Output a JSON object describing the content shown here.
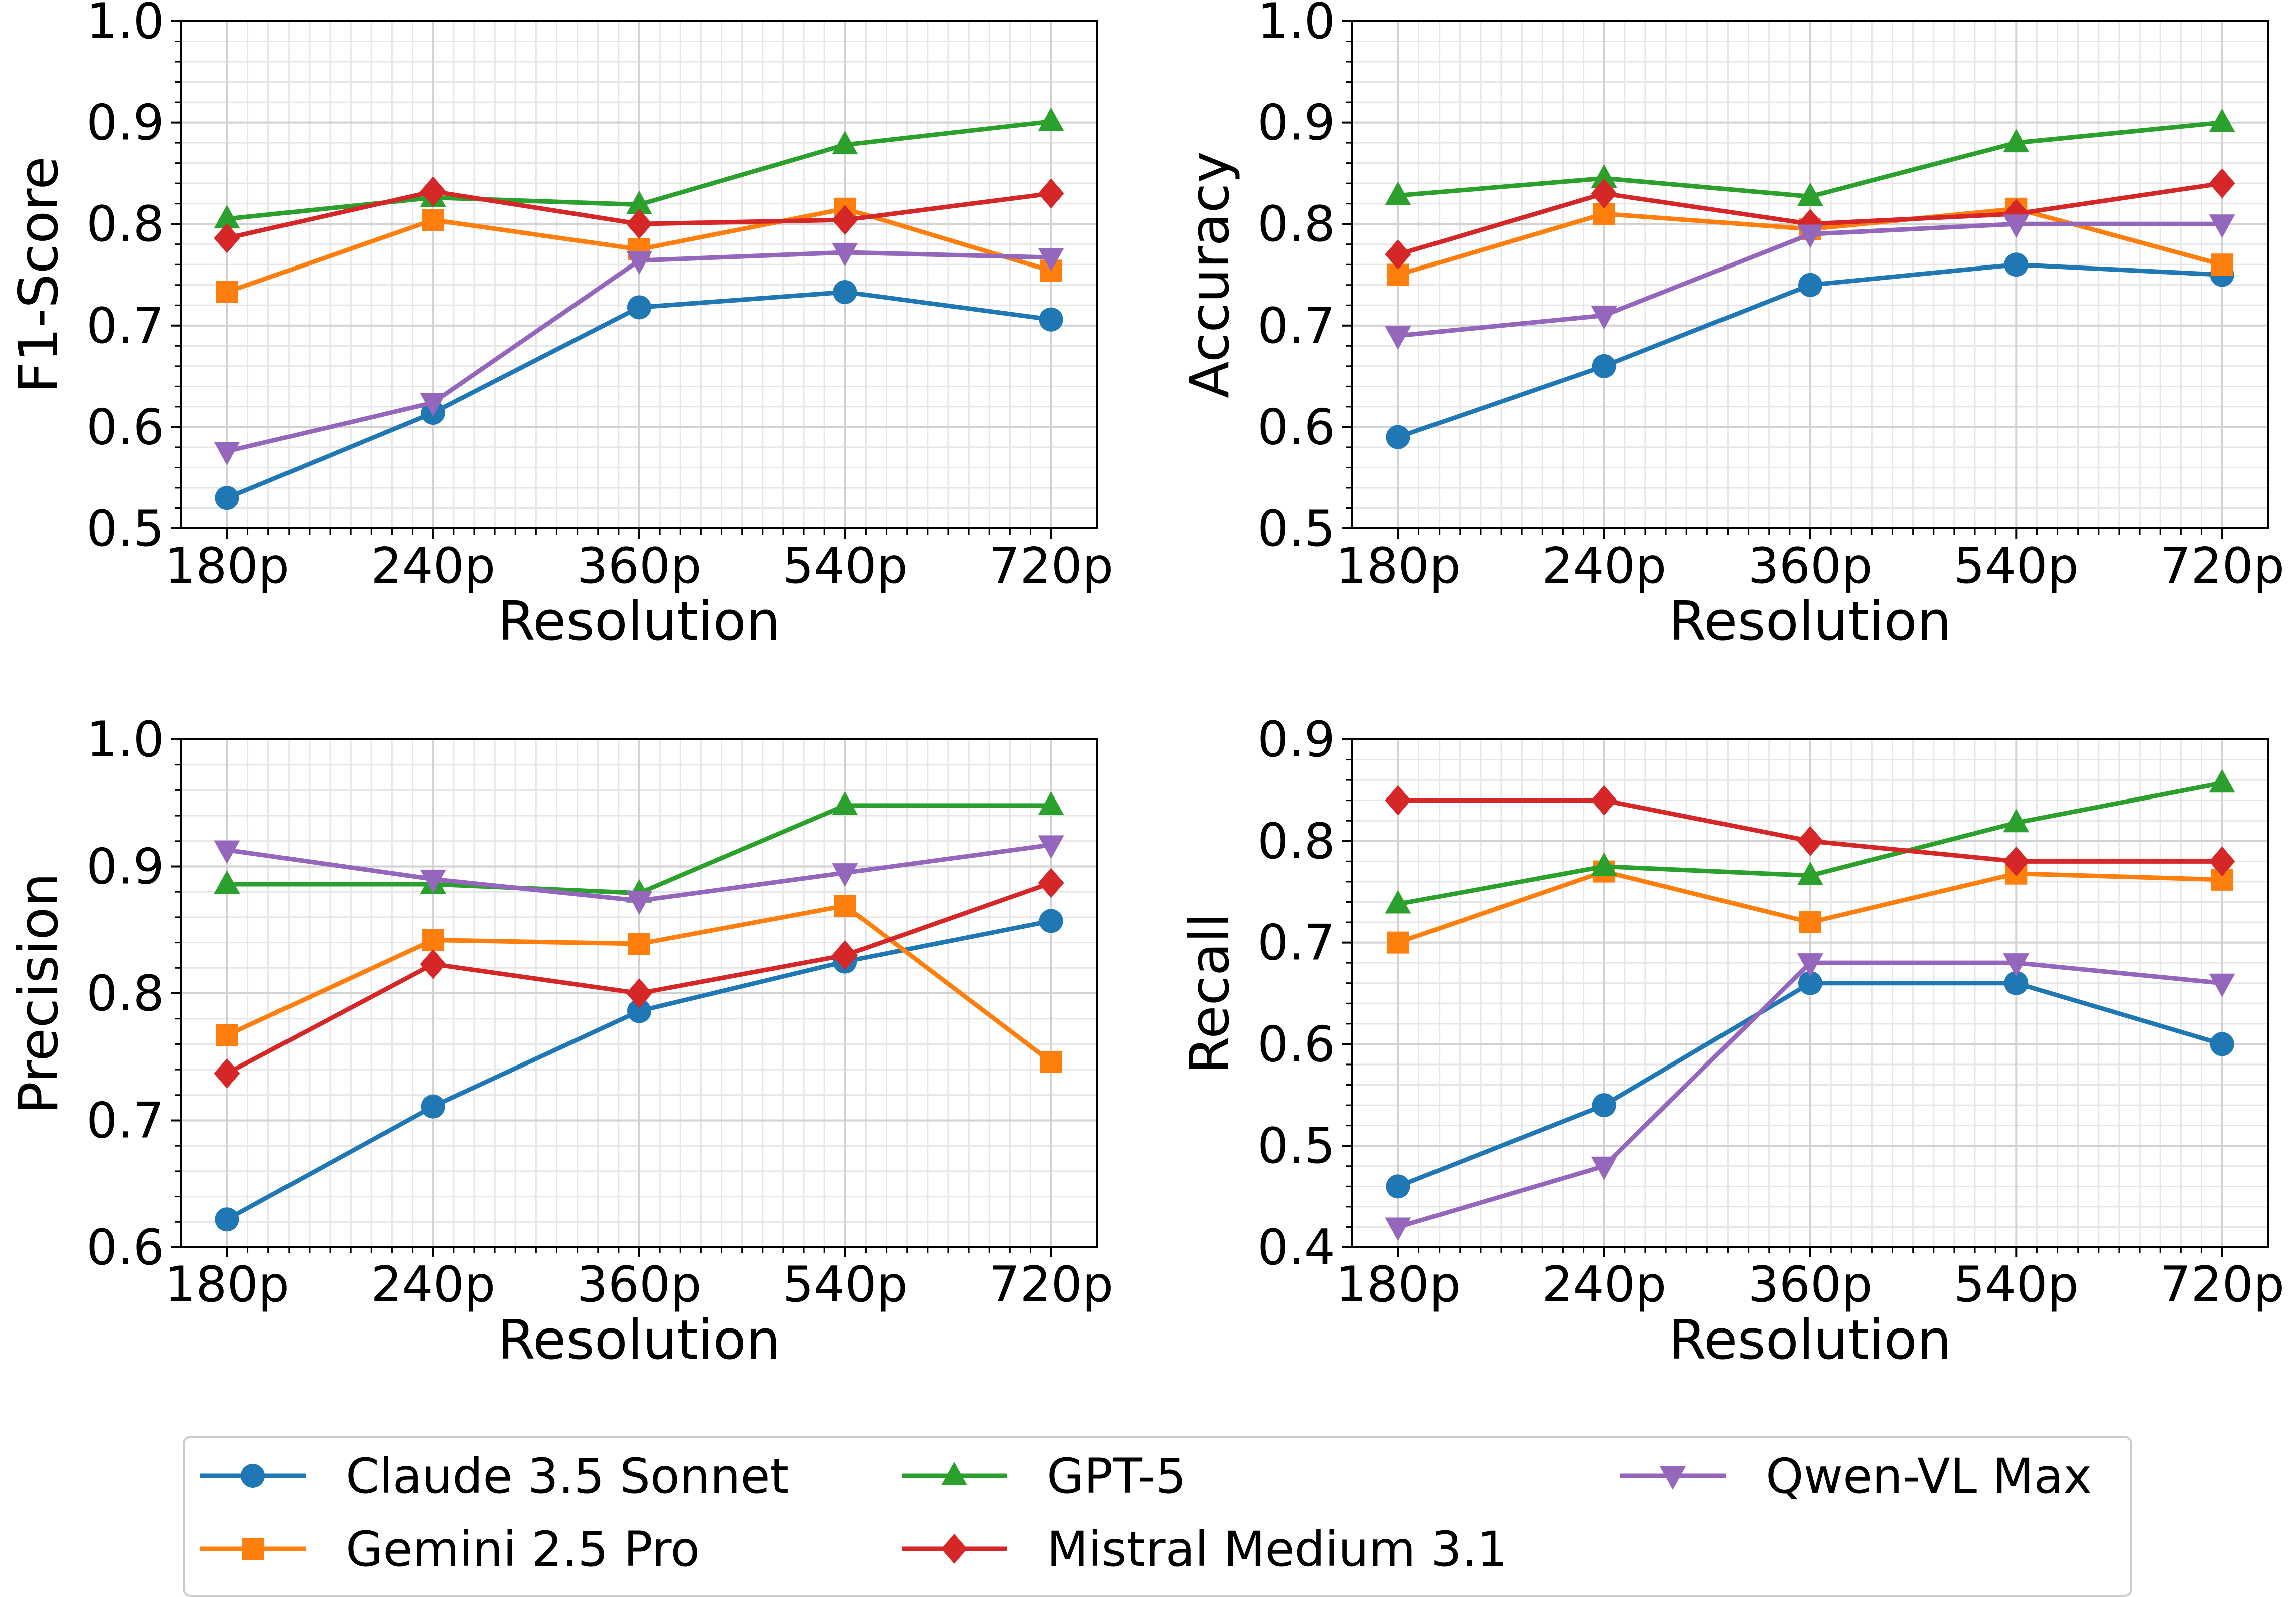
{
  "legend": {
    "position": "bottom-center",
    "entries": [
      {
        "name": "Claude 3.5 Sonnet",
        "color": "#1f77b4",
        "marker": "circle"
      },
      {
        "name": "GPT-5",
        "color": "#2ca02c",
        "marker": "triangle-up"
      },
      {
        "name": "Qwen-VL Max",
        "color": "#9467bd",
        "marker": "triangle-down"
      },
      {
        "name": "Gemini 2.5 Pro",
        "color": "#ff7f0e",
        "marker": "square"
      },
      {
        "name": "Mistral Medium 3.1",
        "color": "#d62728",
        "marker": "diamond"
      }
    ]
  },
  "chart_data": [
    {
      "type": "line",
      "xlabel": "Resolution",
      "ylabel": "F1-Score",
      "categories": [
        "180p",
        "240p",
        "360p",
        "540p",
        "720p"
      ],
      "ylim": [
        0.5,
        1.0
      ],
      "yticks": [
        "0.5",
        "0.6",
        "0.7",
        "0.8",
        "0.9",
        "1.0"
      ],
      "grid": true,
      "series": [
        {
          "name": "Claude 3.5 Sonnet",
          "values": [
            0.53,
            0.614,
            0.718,
            0.733,
            0.706
          ]
        },
        {
          "name": "Gemini 2.5 Pro",
          "values": [
            0.733,
            0.804,
            0.775,
            0.815,
            0.754
          ]
        },
        {
          "name": "GPT-5",
          "values": [
            0.805,
            0.826,
            0.819,
            0.878,
            0.901
          ]
        },
        {
          "name": "Mistral Medium 3.1",
          "values": [
            0.786,
            0.832,
            0.8,
            0.804,
            0.83
          ]
        },
        {
          "name": "Qwen-VL Max",
          "values": [
            0.576,
            0.624,
            0.764,
            0.772,
            0.767
          ]
        }
      ]
    },
    {
      "type": "line",
      "xlabel": "Resolution",
      "ylabel": "Accuracy",
      "categories": [
        "180p",
        "240p",
        "360p",
        "540p",
        "720p"
      ],
      "ylim": [
        0.5,
        1.0
      ],
      "yticks": [
        "0.5",
        "0.6",
        "0.7",
        "0.8",
        "0.9",
        "1.0"
      ],
      "grid": true,
      "series": [
        {
          "name": "Claude 3.5 Sonnet",
          "values": [
            0.59,
            0.66,
            0.74,
            0.76,
            0.75
          ]
        },
        {
          "name": "Gemini 2.5 Pro",
          "values": [
            0.75,
            0.81,
            0.795,
            0.815,
            0.76
          ]
        },
        {
          "name": "GPT-5",
          "values": [
            0.828,
            0.845,
            0.827,
            0.88,
            0.9
          ]
        },
        {
          "name": "Mistral Medium 3.1",
          "values": [
            0.77,
            0.83,
            0.8,
            0.81,
            0.84
          ]
        },
        {
          "name": "Qwen-VL Max",
          "values": [
            0.69,
            0.71,
            0.79,
            0.8,
            0.8
          ]
        }
      ]
    },
    {
      "type": "line",
      "xlabel": "Resolution",
      "ylabel": "Precision",
      "categories": [
        "180p",
        "240p",
        "360p",
        "540p",
        "720p"
      ],
      "ylim": [
        0.6,
        1.0
      ],
      "yticks": [
        "0.6",
        "0.7",
        "0.8",
        "0.9",
        "1.0"
      ],
      "grid": true,
      "series": [
        {
          "name": "Claude 3.5 Sonnet",
          "values": [
            0.622,
            0.711,
            0.786,
            0.825,
            0.857
          ]
        },
        {
          "name": "Gemini 2.5 Pro",
          "values": [
            0.767,
            0.842,
            0.839,
            0.869,
            0.746
          ]
        },
        {
          "name": "GPT-5",
          "values": [
            0.886,
            0.886,
            0.879,
            0.948,
            0.948
          ]
        },
        {
          "name": "Mistral Medium 3.1",
          "values": [
            0.737,
            0.823,
            0.8,
            0.83,
            0.887
          ]
        },
        {
          "name": "Qwen-VL Max",
          "values": [
            0.913,
            0.89,
            0.873,
            0.895,
            0.917
          ]
        }
      ]
    },
    {
      "type": "line",
      "xlabel": "Resolution",
      "ylabel": "Recall",
      "categories": [
        "180p",
        "240p",
        "360p",
        "540p",
        "720p"
      ],
      "ylim": [
        0.4,
        0.9
      ],
      "yticks": [
        "0.4",
        "0.5",
        "0.6",
        "0.7",
        "0.8",
        "0.9"
      ],
      "grid": true,
      "series": [
        {
          "name": "Claude 3.5 Sonnet",
          "values": [
            0.46,
            0.54,
            0.66,
            0.66,
            0.6
          ]
        },
        {
          "name": "Gemini 2.5 Pro",
          "values": [
            0.7,
            0.77,
            0.72,
            0.768,
            0.762
          ]
        },
        {
          "name": "GPT-5",
          "values": [
            0.738,
            0.775,
            0.766,
            0.818,
            0.857
          ]
        },
        {
          "name": "Mistral Medium 3.1",
          "values": [
            0.84,
            0.84,
            0.8,
            0.78,
            0.78
          ]
        },
        {
          "name": "Qwen-VL Max",
          "values": [
            0.42,
            0.48,
            0.68,
            0.68,
            0.66
          ]
        }
      ]
    }
  ]
}
